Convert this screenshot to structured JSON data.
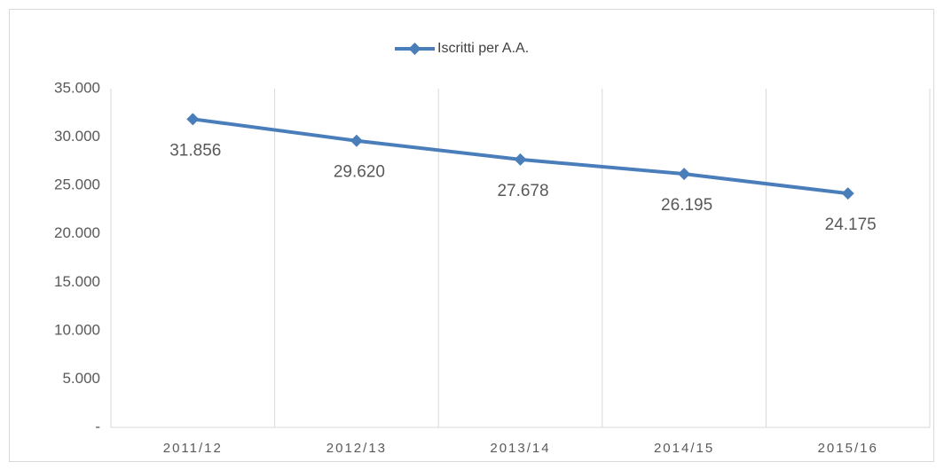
{
  "chart_data": {
    "type": "line",
    "categories": [
      "2011/12",
      "2012/13",
      "2013/14",
      "2014/15",
      "2015/16"
    ],
    "series": [
      {
        "name": "Iscritti per A.A.",
        "color": "#4a7ebb",
        "values": [
          31856,
          29620,
          27678,
          26195,
          24175
        ],
        "value_labels": [
          "31.856",
          "29.620",
          "27.678",
          "26.195",
          "24.175"
        ]
      }
    ],
    "ylim": [
      0,
      35000
    ],
    "yticks": [
      {
        "value": 0,
        "label": "-"
      },
      {
        "value": 5000,
        "label": "5.000"
      },
      {
        "value": 10000,
        "label": "10.000"
      },
      {
        "value": 15000,
        "label": "15.000"
      },
      {
        "value": 20000,
        "label": "20.000"
      },
      {
        "value": 25000,
        "label": "25.000"
      },
      {
        "value": 30000,
        "label": "30.000"
      },
      {
        "value": 35000,
        "label": "35.000"
      }
    ],
    "grid": "x",
    "legend": "top"
  }
}
